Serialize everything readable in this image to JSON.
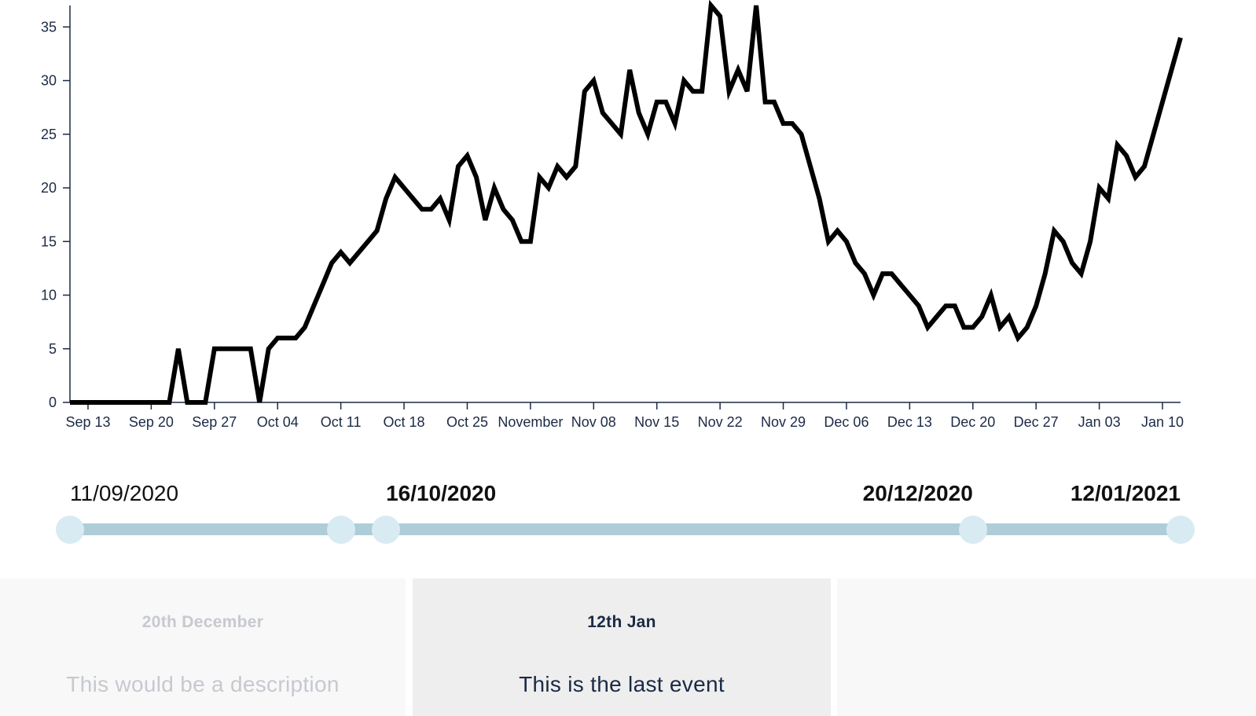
{
  "chart_data": {
    "type": "line",
    "x_start": "2020-09-11",
    "x_end": "2021-01-12",
    "y": [
      0,
      0,
      0,
      0,
      0,
      0,
      0,
      0,
      0,
      0,
      0,
      0,
      5,
      0,
      0,
      0,
      5,
      5,
      5,
      5,
      5,
      0,
      5,
      6,
      6,
      6,
      7,
      9,
      11,
      13,
      14,
      13,
      14,
      15,
      16,
      19,
      21,
      20,
      19,
      18,
      18,
      19,
      17,
      22,
      23,
      21,
      17,
      20,
      18,
      17,
      15,
      15,
      21,
      20,
      22,
      21,
      22,
      29,
      30,
      27,
      26,
      25,
      31,
      27,
      25,
      28,
      28,
      26,
      30,
      29,
      29,
      37,
      36,
      29,
      31,
      29,
      37,
      28,
      28,
      26,
      26,
      25,
      22,
      19,
      15,
      16,
      15,
      13,
      12,
      10,
      12,
      12,
      11,
      10,
      9,
      7,
      8,
      9,
      9,
      7,
      7,
      8,
      10,
      7,
      8,
      6,
      7,
      9,
      12,
      16,
      15,
      13,
      12,
      15,
      20,
      19,
      24,
      23,
      21,
      22,
      25,
      28,
      31,
      34
    ],
    "ylim": [
      0,
      37
    ],
    "y_ticks": [
      0,
      5,
      10,
      15,
      20,
      25,
      30,
      35
    ],
    "x_ticks": [
      {
        "date": "2020-09-13",
        "label": "Sep 13"
      },
      {
        "date": "2020-09-20",
        "label": "Sep 20"
      },
      {
        "date": "2020-09-27",
        "label": "Sep 27"
      },
      {
        "date": "2020-10-04",
        "label": "Oct 04"
      },
      {
        "date": "2020-10-11",
        "label": "Oct 11"
      },
      {
        "date": "2020-10-18",
        "label": "Oct 18"
      },
      {
        "date": "2020-10-25",
        "label": "Oct 25"
      },
      {
        "date": "2020-11-01",
        "label": "November"
      },
      {
        "date": "2020-11-08",
        "label": "Nov 08"
      },
      {
        "date": "2020-11-15",
        "label": "Nov 15"
      },
      {
        "date": "2020-11-22",
        "label": "Nov 22"
      },
      {
        "date": "2020-11-29",
        "label": "Nov 29"
      },
      {
        "date": "2020-12-06",
        "label": "Dec 06"
      },
      {
        "date": "2020-12-13",
        "label": "Dec 13"
      },
      {
        "date": "2020-12-20",
        "label": "Dec 20"
      },
      {
        "date": "2020-12-27",
        "label": "Dec 27"
      },
      {
        "date": "2021-01-03",
        "label": "Jan 03"
      },
      {
        "date": "2021-01-10",
        "label": "Jan 10"
      }
    ],
    "line_color": "#000000",
    "axis_color": "#1b2a45",
    "grid": false
  },
  "timeline": {
    "range": {
      "start": "2020-09-11",
      "end": "2021-01-12"
    },
    "bar_color": "#aecdd8",
    "handle_color": "#d8ebf3",
    "handles": [
      {
        "date": "2020-09-11"
      },
      {
        "date": "2020-10-11"
      },
      {
        "date": "2020-10-16"
      },
      {
        "date": "2020-12-20"
      },
      {
        "date": "2021-01-12"
      }
    ],
    "labels": [
      {
        "text": "11/09/2020",
        "date": "2020-09-11",
        "bold": false,
        "align": "start"
      },
      {
        "text": "16/10/2020",
        "date": "2020-10-16",
        "bold": true,
        "align": "start"
      },
      {
        "text": "20/12/2020",
        "date": "2020-12-20",
        "bold": true,
        "align": "end"
      },
      {
        "text": "12/01/2021",
        "date": "2021-01-12",
        "bold": true,
        "align": "end"
      }
    ]
  },
  "events": [
    {
      "date": "20th December",
      "description": "This would be a description",
      "state": "faded"
    },
    {
      "date": "12th Jan",
      "description": "This is the last event",
      "state": "active"
    },
    {
      "date": "",
      "description": "",
      "state": "empty"
    }
  ],
  "colors": {
    "card_faded_bg": "#f8f8f8",
    "card_active_bg": "#eeeeee",
    "card_empty_bg": "#f8f8f8",
    "text_dark": "#1b2a45",
    "text_faded": "#c6c9cf"
  }
}
